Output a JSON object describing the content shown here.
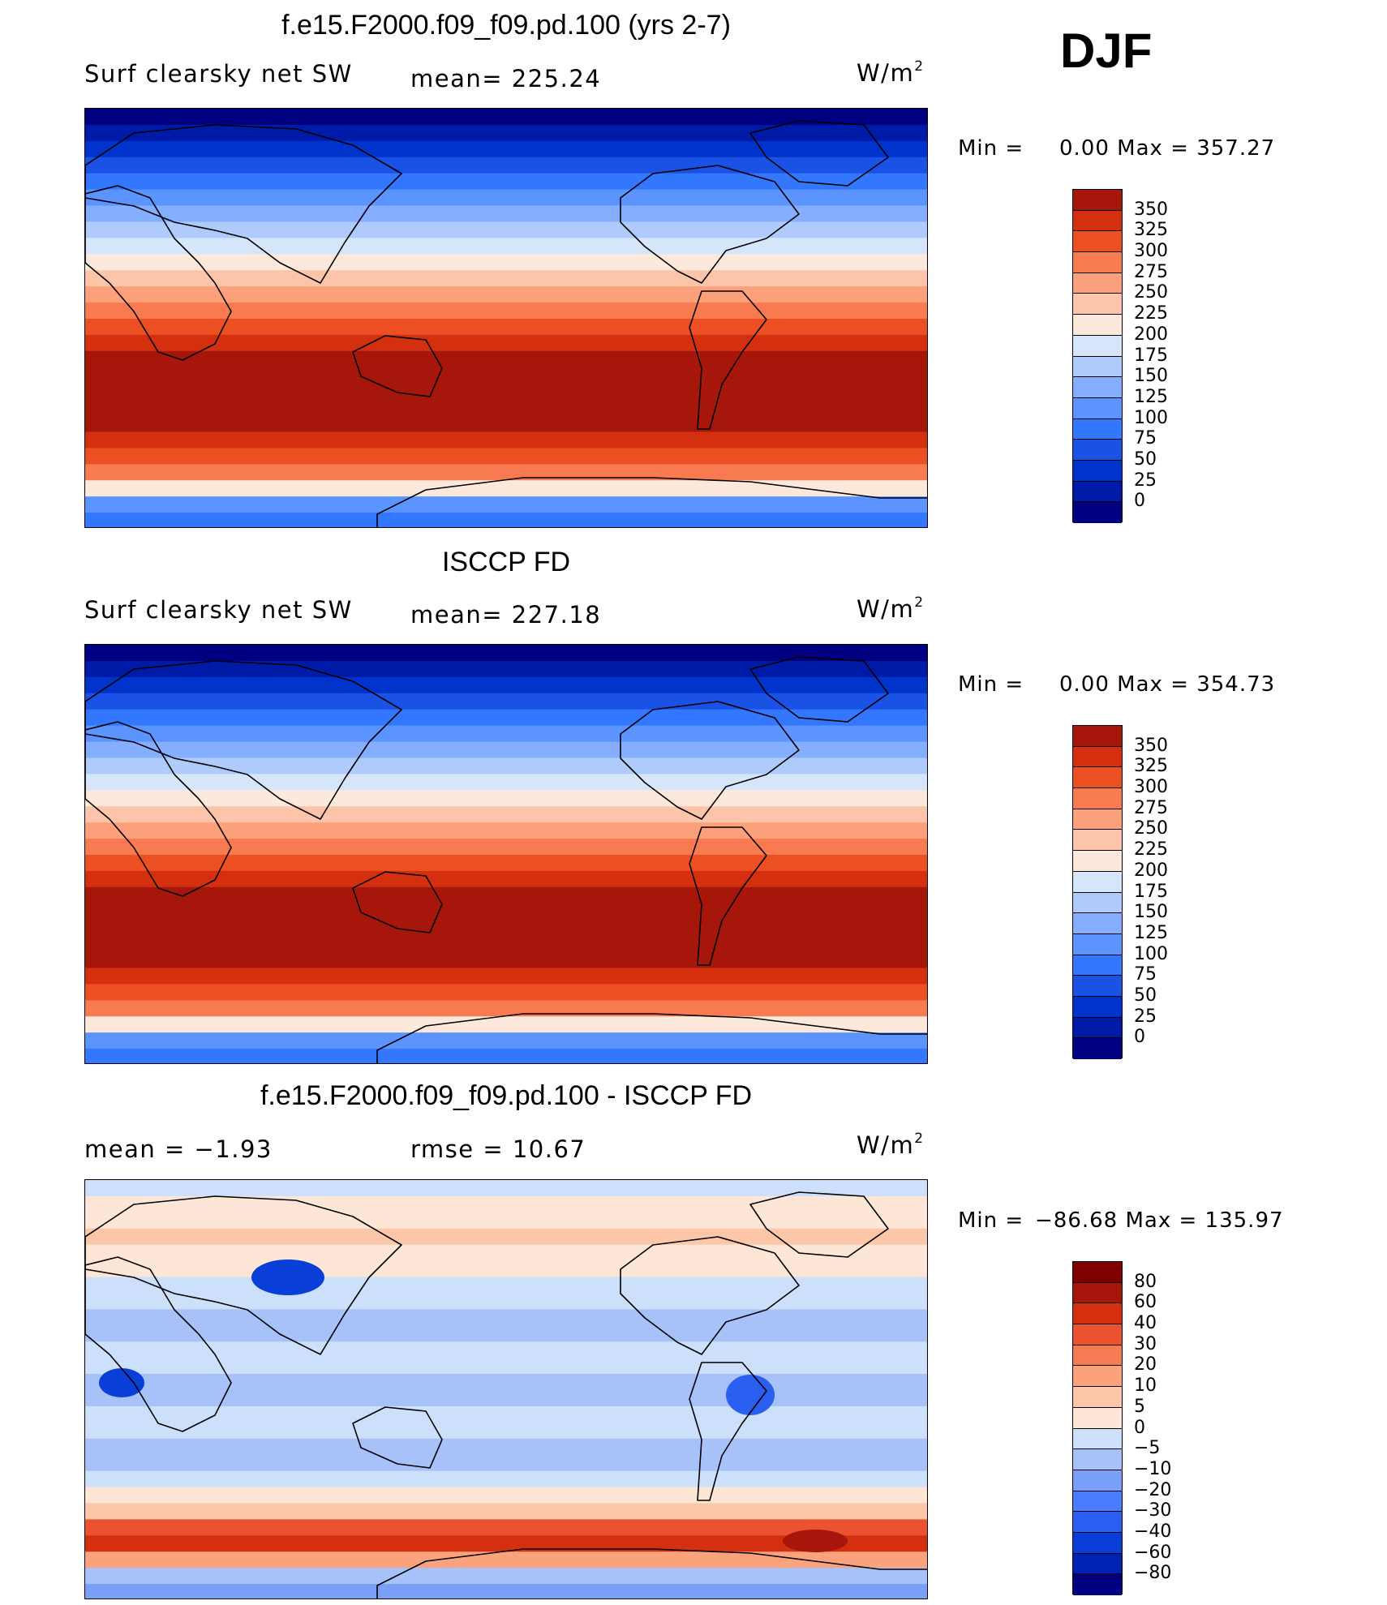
{
  "season": "DJF",
  "panels": [
    {
      "title": "f.e15.F2000.f09_f09.pd.100 (yrs 2-7)",
      "left_label": "Surf clearsky net SW",
      "mid_label": "mean=  225.24",
      "units_base": "W/m",
      "units_exp": "2",
      "min_text": "Min  =",
      "minmax_text": "0.00  Max  =  357.27",
      "legend": [
        "350",
        "325",
        "300",
        "275",
        "250",
        "225",
        "200",
        "175",
        "150",
        "125",
        "100",
        "75",
        "50",
        "25",
        "0"
      ],
      "kind": "abs"
    },
    {
      "title": "ISCCP FD",
      "left_label": "Surf clearsky net SW",
      "mid_label": "mean=  227.18",
      "units_base": "W/m",
      "units_exp": "2",
      "min_text": "Min  =",
      "minmax_text": "0.00  Max  =  354.73",
      "legend": [
        "350",
        "325",
        "300",
        "275",
        "250",
        "225",
        "200",
        "175",
        "150",
        "125",
        "100",
        "75",
        "50",
        "25",
        "0"
      ],
      "kind": "abs"
    },
    {
      "title": "f.e15.F2000.f09_f09.pd.100 - ISCCP FD",
      "left_label": "mean  =    −1.93",
      "mid_label": "rmse  =    10.67",
      "units_base": "W/m",
      "units_exp": "2",
      "min_text": "Min  =",
      "minmax_text": "−86.68  Max  =  135.97",
      "legend": [
        "80",
        "60",
        "40",
        "30",
        "20",
        "10",
        "5",
        "0",
        "−5",
        "−10",
        "−20",
        "−30",
        "−40",
        "−60",
        "−80"
      ],
      "kind": "diff"
    }
  ],
  "colors": {
    "abs_scale": [
      "#000080",
      "#001aa8",
      "#0033cc",
      "#1a52e6",
      "#3377ff",
      "#5c94ff",
      "#85aefe",
      "#aecbfc",
      "#d5e6fb",
      "#fde9dc",
      "#fcc4a8",
      "#fca07c",
      "#f87a50",
      "#eb4f22",
      "#d43010",
      "#a6160a"
    ],
    "diff_scale": [
      "#000080",
      "#0022b3",
      "#0a3ed9",
      "#2a5ff2",
      "#4a7cff",
      "#7a9ff8",
      "#a6c2f8",
      "#cde0fb",
      "#fde6d6",
      "#fcc7a8",
      "#f9a27c",
      "#f57c52",
      "#ea5230",
      "#d43010",
      "#a6160a",
      "#800000"
    ]
  }
}
